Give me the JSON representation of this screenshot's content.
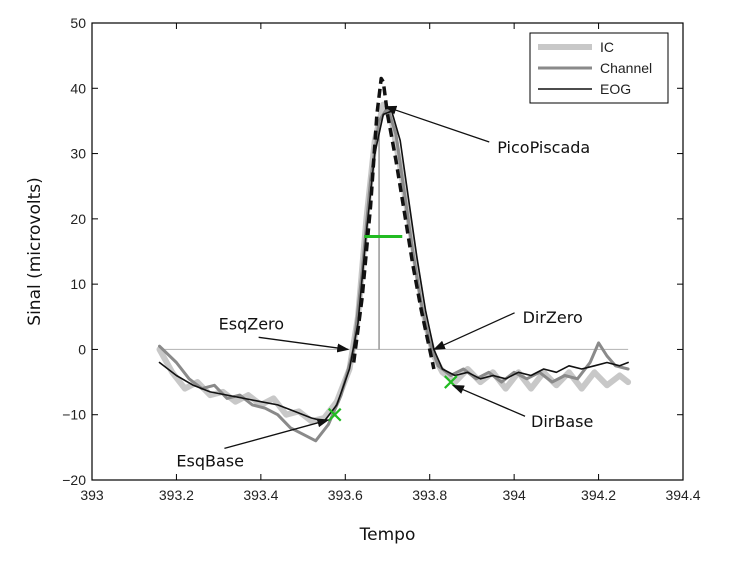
{
  "chart_data": {
    "type": "line",
    "xlabel": "Tempo",
    "ylabel": "Sinal (microvolts)",
    "xlim": [
      393,
      394.4
    ],
    "ylim": [
      -20,
      50
    ],
    "xticks": [
      393,
      393.2,
      393.4,
      393.6,
      393.8,
      394,
      394.2,
      394.4
    ],
    "yticks": [
      -20,
      -10,
      0,
      10,
      20,
      30,
      40,
      50
    ],
    "xtick_labels": [
      "393",
      "393.2",
      "393.4",
      "393.6",
      "393.8",
      "394",
      "394.2",
      "394.4"
    ],
    "ytick_labels": [
      "−20",
      "−10",
      "0",
      "10",
      "20",
      "30",
      "40",
      "50"
    ],
    "grid": false,
    "legend_position": "top-right",
    "colors": {
      "ic": "#c8c8c8",
      "channel": "#8a8a8a",
      "eog": "#111111",
      "fit": "#111111",
      "markers": "#22bb22",
      "zero_line": "#bbbbbb",
      "peak_line": "#888888"
    },
    "series": [
      {
        "name": "IC",
        "points": [
          [
            393.16,
            0
          ],
          [
            393.19,
            -3.5
          ],
          [
            393.22,
            -6
          ],
          [
            393.25,
            -5
          ],
          [
            393.28,
            -7
          ],
          [
            393.31,
            -6.5
          ],
          [
            393.34,
            -8
          ],
          [
            393.37,
            -7
          ],
          [
            393.4,
            -8.5
          ],
          [
            393.43,
            -7.5
          ],
          [
            393.46,
            -10
          ],
          [
            393.49,
            -9.5
          ],
          [
            393.52,
            -11
          ],
          [
            393.55,
            -10.5
          ],
          [
            393.58,
            -8
          ],
          [
            393.61,
            -3
          ],
          [
            393.63,
            5
          ],
          [
            393.65,
            20
          ],
          [
            393.67,
            32
          ],
          [
            393.69,
            37.5
          ],
          [
            393.71,
            35
          ],
          [
            393.73,
            28
          ],
          [
            393.75,
            20
          ],
          [
            393.77,
            12
          ],
          [
            393.79,
            4
          ],
          [
            393.81,
            -1
          ],
          [
            393.83,
            -3.5
          ],
          [
            393.86,
            -5
          ],
          [
            393.89,
            -3
          ],
          [
            393.92,
            -5
          ],
          [
            393.95,
            -3.5
          ],
          [
            393.98,
            -6
          ],
          [
            394.01,
            -3.5
          ],
          [
            394.04,
            -6
          ],
          [
            394.07,
            -3.5
          ],
          [
            394.1,
            -5.5
          ],
          [
            394.13,
            -3.5
          ],
          [
            394.16,
            -6
          ],
          [
            394.19,
            -3.5
          ],
          [
            394.22,
            -5.5
          ],
          [
            394.25,
            -4
          ],
          [
            394.27,
            -5
          ]
        ]
      },
      {
        "name": "Channel",
        "points": [
          [
            393.16,
            0.5
          ],
          [
            393.2,
            -2
          ],
          [
            393.23,
            -4.5
          ],
          [
            393.26,
            -6
          ],
          [
            393.29,
            -5.5
          ],
          [
            393.32,
            -7.5
          ],
          [
            393.35,
            -7
          ],
          [
            393.38,
            -8.5
          ],
          [
            393.41,
            -9
          ],
          [
            393.44,
            -10
          ],
          [
            393.47,
            -12
          ],
          [
            393.5,
            -13
          ],
          [
            393.53,
            -14
          ],
          [
            393.56,
            -11.5
          ],
          [
            393.59,
            -7
          ],
          [
            393.62,
            0
          ],
          [
            393.64,
            12
          ],
          [
            393.66,
            26
          ],
          [
            393.68,
            35
          ],
          [
            393.7,
            37
          ],
          [
            393.72,
            33
          ],
          [
            393.74,
            24
          ],
          [
            393.76,
            15
          ],
          [
            393.78,
            7
          ],
          [
            393.8,
            1
          ],
          [
            393.82,
            -2.5
          ],
          [
            393.85,
            -4
          ],
          [
            393.88,
            -3
          ],
          [
            393.91,
            -4.5
          ],
          [
            393.94,
            -3.5
          ],
          [
            393.97,
            -5
          ],
          [
            394.0,
            -3.5
          ],
          [
            394.03,
            -4.5
          ],
          [
            394.06,
            -3.5
          ],
          [
            394.09,
            -5
          ],
          [
            394.12,
            -4
          ],
          [
            394.15,
            -4.5
          ],
          [
            394.18,
            -2
          ],
          [
            394.2,
            1
          ],
          [
            394.22,
            -1
          ],
          [
            394.24,
            -2.5
          ],
          [
            394.27,
            -3
          ]
        ]
      },
      {
        "name": "EOG",
        "points": [
          [
            393.16,
            -2
          ],
          [
            393.2,
            -4
          ],
          [
            393.24,
            -5.5
          ],
          [
            393.28,
            -6.5
          ],
          [
            393.32,
            -7
          ],
          [
            393.36,
            -7.5
          ],
          [
            393.4,
            -8
          ],
          [
            393.44,
            -8.5
          ],
          [
            393.48,
            -9.5
          ],
          [
            393.52,
            -10.5
          ],
          [
            393.55,
            -11
          ],
          [
            393.58,
            -8.5
          ],
          [
            393.61,
            -3
          ],
          [
            393.63,
            4
          ],
          [
            393.65,
            18
          ],
          [
            393.67,
            30
          ],
          [
            393.69,
            36
          ],
          [
            393.71,
            36.5
          ],
          [
            393.73,
            32
          ],
          [
            393.75,
            23
          ],
          [
            393.77,
            14
          ],
          [
            393.79,
            6
          ],
          [
            393.81,
            0
          ],
          [
            393.83,
            -3
          ],
          [
            393.86,
            -4
          ],
          [
            393.89,
            -3.5
          ],
          [
            393.92,
            -4.5
          ],
          [
            393.95,
            -4
          ],
          [
            393.98,
            -4.5
          ],
          [
            394.01,
            -3.5
          ],
          [
            394.04,
            -4
          ],
          [
            394.07,
            -3
          ],
          [
            394.1,
            -3.5
          ],
          [
            394.13,
            -2.5
          ],
          [
            394.16,
            -3
          ],
          [
            394.19,
            -2.5
          ],
          [
            394.22,
            -2
          ],
          [
            394.25,
            -2.5
          ],
          [
            394.27,
            -2
          ]
        ]
      }
    ],
    "fit_curve": [
      [
        393.62,
        -2
      ],
      [
        393.64,
        8
      ],
      [
        393.66,
        22
      ],
      [
        393.675,
        36
      ],
      [
        393.685,
        41.5
      ],
      [
        393.69,
        41
      ],
      [
        393.7,
        36
      ],
      [
        393.72,
        29
      ],
      [
        393.74,
        21
      ],
      [
        393.76,
        13
      ],
      [
        393.78,
        6
      ],
      [
        393.8,
        0
      ],
      [
        393.81,
        -3
      ]
    ],
    "zero_line": {
      "y": 0,
      "x": [
        393.16,
        394.27
      ]
    },
    "peak_line": {
      "x": 393.68,
      "y": [
        0,
        37
      ]
    },
    "half_width_line": {
      "y": 17.3,
      "x": [
        393.645,
        393.735
      ]
    },
    "markers": [
      {
        "name": "EsqBase",
        "x": 393.575,
        "y": -10
      },
      {
        "name": "DirBase",
        "x": 393.85,
        "y": -5
      }
    ],
    "annotations": [
      {
        "text": "PicoPiscada",
        "target": [
          393.695,
          37.2
        ],
        "text_at": [
          393.96,
          31
        ]
      },
      {
        "text": "EsqZero",
        "target": [
          393.607,
          0
        ],
        "text_at": [
          393.3,
          4
        ]
      },
      {
        "text": "DirZero",
        "target": [
          393.81,
          0
        ],
        "text_at": [
          394.02,
          5
        ]
      },
      {
        "text": "DirBase",
        "target": [
          393.855,
          -5.5
        ],
        "text_at": [
          394.04,
          -11
        ]
      },
      {
        "text": "EsqBase",
        "target": [
          393.56,
          -10.8
        ],
        "text_at": [
          393.2,
          -17
        ]
      }
    ]
  }
}
